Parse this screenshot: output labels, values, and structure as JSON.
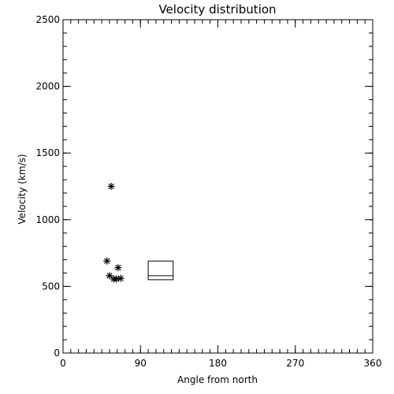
{
  "chart_data": {
    "type": "scatter",
    "title": "Velocity distribution",
    "xlabel": "Angle from north",
    "ylabel": "Velocity (km/s)",
    "xlim": [
      0,
      360
    ],
    "ylim": [
      0,
      2500
    ],
    "xticks": [
      0,
      90,
      180,
      270,
      360
    ],
    "yticks": [
      0,
      500,
      1000,
      1500,
      2000,
      2500
    ],
    "xtick_labels": [
      "0",
      "90",
      "180",
      "270",
      "360"
    ],
    "ytick_labels": [
      "0",
      "500",
      "1000",
      "1500",
      "2000",
      "2500"
    ],
    "x_minor_step": 9,
    "y_minor_step": 100,
    "grid": false,
    "marker": "asterisk",
    "points": [
      {
        "x": 56,
        "y": 1250
      },
      {
        "x": 51,
        "y": 690
      },
      {
        "x": 64,
        "y": 640
      },
      {
        "x": 54,
        "y": 580
      },
      {
        "x": 59,
        "y": 555
      },
      {
        "x": 62,
        "y": 555
      },
      {
        "x": 67,
        "y": 560
      }
    ],
    "box": {
      "x1": 99,
      "x2": 128,
      "y1": 550,
      "y2": 690,
      "median": 580
    }
  },
  "colors": {
    "foreground": "#000000",
    "background": "#ffffff"
  }
}
